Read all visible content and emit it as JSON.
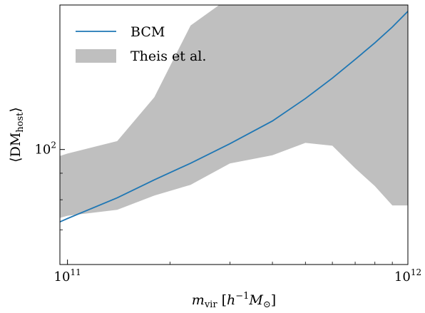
{
  "chart_data": {
    "type": "area",
    "xscale": "log",
    "yscale": "log",
    "xlim": [
      95000000000,
      1000000000000
    ],
    "ylim": [
      60,
      190
    ],
    "xlabel": "m_vir [h^-1 M_⊙]",
    "xlabel_parts": {
      "main": "m",
      "sub": "vir",
      "bracket_open": " [",
      "h": "h",
      "sup": "−1",
      "M": "M",
      "msub": "⊙",
      "bracket_close": "]"
    },
    "ylabel": "⟨DM_host⟩",
    "ylabel_parts": {
      "open": "⟨DM",
      "sub": "host",
      "close": "⟩"
    },
    "x_ticks": [
      {
        "value": 100000000000,
        "base": "10",
        "exp": "11"
      },
      {
        "value": 1000000000000,
        "base": "10",
        "exp": "12"
      }
    ],
    "y_ticks": [
      {
        "value": 100,
        "base": "10",
        "exp": "2"
      }
    ],
    "x_minor_ticks": [
      200000000000,
      300000000000,
      400000000000,
      500000000000,
      600000000000,
      700000000000,
      800000000000,
      900000000000
    ],
    "y_minor_ticks": [
      60,
      70,
      80,
      90
    ],
    "legend_position": "upper-left",
    "grid": false,
    "series": [
      {
        "name": "BCM",
        "kind": "line",
        "color": "#1f77b4",
        "x": [
          95000000000,
          100000000000,
          140000000000,
          180000000000,
          230000000000,
          300000000000,
          400000000000,
          500000000000,
          600000000000,
          700000000000,
          800000000000,
          900000000000,
          1000000000000
        ],
        "y": [
          72.5,
          73.6,
          80.7,
          87.4,
          94.1,
          102.6,
          113.5,
          125.4,
          137.3,
          149.2,
          160.6,
          172.3,
          184.7
        ]
      },
      {
        "name": "Theis et al.",
        "kind": "band",
        "color": "#bfbfbf",
        "x": [
          95000000000,
          100000000000,
          140000000000,
          180000000000,
          230000000000,
          300000000000,
          400000000000,
          500000000000,
          600000000000,
          700000000000,
          800000000000,
          900000000000,
          1000000000000
        ],
        "y_low": [
          73.8,
          74.5,
          76.5,
          81.5,
          85.5,
          94.0,
          97.5,
          103.0,
          101.7,
          92.0,
          85.0,
          78.0,
          78.0
        ],
        "y_high": [
          97.2,
          98.2,
          103.8,
          126.2,
          173.5,
          196.6,
          224.4,
          262.0,
          290.0,
          245.0,
          227.5,
          218.0,
          215.0
        ]
      }
    ]
  }
}
